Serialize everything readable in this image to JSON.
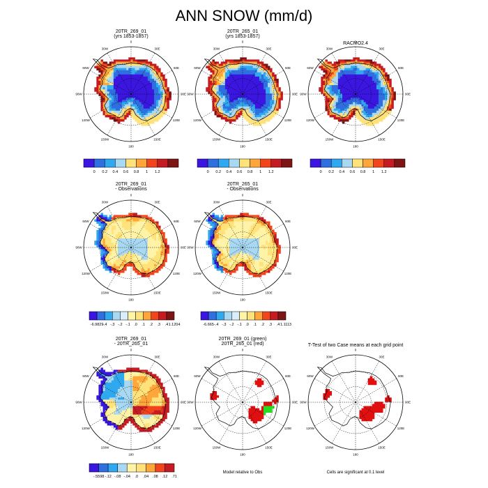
{
  "page": {
    "title": "ANN SNOW (mm/d)"
  },
  "map_labels": {
    "meridians": [
      "0",
      "30E",
      "60E",
      "90E",
      "120E",
      "150E",
      "180",
      "150W",
      "120W",
      "90W",
      "60W",
      "30W"
    ]
  },
  "chart_data": [
    {
      "type": "heatmap",
      "panel": "r1c1",
      "title": [
        "20TR_269_01",
        "(yrs 1853-1857)"
      ],
      "palette": "amount",
      "colorbar_labels": [
        "0",
        "0.2",
        "0.4",
        "0.6",
        "0.8",
        "1",
        "1.2"
      ]
    },
    {
      "type": "heatmap",
      "panel": "r1c2",
      "title": [
        "20TR_265_01",
        "(yrs 1853-1857)"
      ],
      "palette": "amount",
      "colorbar_labels": [
        "0",
        "0.2",
        "0.4",
        "0.6",
        "0.8",
        "1",
        "1.2"
      ]
    },
    {
      "type": "heatmap",
      "panel": "r1c3",
      "title": [
        "RACMO2.4"
      ],
      "palette": "amount",
      "colorbar_labels": [
        "0",
        "0.2",
        "0.4",
        "0.6",
        "0.8",
        "1",
        "1.2"
      ]
    },
    {
      "type": "heatmap",
      "panel": "r2c1",
      "title": [
        "20TR_269_01",
        "- Observations"
      ],
      "palette": "diff",
      "colorbar_labels": [
        "-6.9829",
        "-.4",
        "-.3",
        "-.2",
        "-.1",
        ".0",
        ".1",
        ".2",
        ".3",
        ".4",
        "1.1204"
      ]
    },
    {
      "type": "heatmap",
      "panel": "r2c2",
      "title": [
        "20TR_265_01",
        "- Observations"
      ],
      "palette": "diff",
      "colorbar_labels": [
        "-6.665",
        "-.4",
        "-.3",
        "-.2",
        "-.1",
        ".0",
        ".1",
        ".2",
        ".3",
        ".4",
        "1.1113"
      ]
    },
    {
      "type": "heatmap",
      "panel": "r3c1",
      "title": [
        "20TR_269_01",
        "- 20TR_265_01"
      ],
      "palette": "diff",
      "colorbar_labels": [
        "-.5598",
        "-.12",
        "-.08",
        "-.04",
        ".0",
        ".04",
        ".08",
        ".12",
        ".71"
      ]
    },
    {
      "type": "heatmap",
      "panel": "r3c2",
      "title": [
        "20TR_269_01 (green)",
        "20TR_265_01 (red)"
      ],
      "palette": "significance",
      "footnote": "Model relative to Obs"
    },
    {
      "type": "heatmap",
      "panel": "r3c3",
      "title": [
        "T-Test of two Case means at each grid point"
      ],
      "palette": "significance",
      "footnote": "Cells are significant at 0.1 level"
    }
  ],
  "colors": {
    "amount": [
      "#3a16e0",
      "#2f6fe0",
      "#2fa8ef",
      "#a9d8f2",
      "#ffe27a",
      "#ffa63a",
      "#f2451d",
      "#c41c22",
      "#7d1515"
    ],
    "diff": [
      "#3a16e0",
      "#2f6fe0",
      "#2fa8ef",
      "#a9d8f2",
      "#d9eefa",
      "#fff3a8",
      "#ffe27a",
      "#ffa63a",
      "#f2451d",
      "#c41c22",
      "#7d1515"
    ],
    "diff3": [
      "#3a16e0",
      "#2f6fe0",
      "#2fa8ef",
      "#a9d8f2",
      "#fff3a8",
      "#ffe27a",
      "#ffa63a",
      "#f2451d",
      "#c41c22"
    ],
    "sig_green": "#22dd22",
    "sig_red": "#e01010",
    "coast": "#000000"
  }
}
